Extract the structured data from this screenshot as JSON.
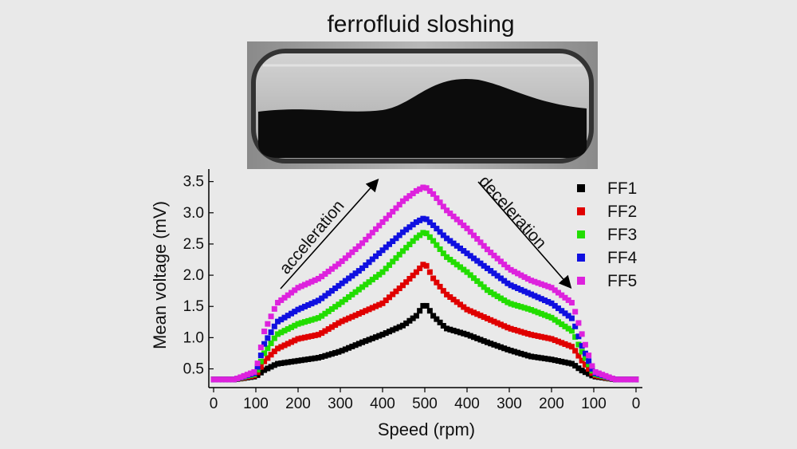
{
  "figure": {
    "photo_caption": "ferrofluid sloshing",
    "photo_subject": "cylindrical tube with ferrofluid"
  },
  "chart_data": {
    "type": "scatter",
    "title": "",
    "xlabel": "Speed (rpm)",
    "ylabel": "Mean voltage (mV)",
    "x_tick_labels": [
      "0",
      "100",
      "200",
      "300",
      "400",
      "500",
      "400",
      "300",
      "200",
      "100",
      "0"
    ],
    "y_tick_labels": [
      "0.5",
      "1.0",
      "1.5",
      "2.0",
      "2.5",
      "3.0",
      "3.5"
    ],
    "ylim": [
      0.2,
      3.7
    ],
    "x_axis_note": "speed ramps 0→500 rpm (acceleration) then 500→0 rpm (deceleration)",
    "annotations": [
      "acceleration",
      "deceleration"
    ],
    "legend_position": "top-right",
    "series": [
      {
        "name": "FF1",
        "color": "#000000",
        "x": [
          0,
          50,
          100,
          120,
          150,
          200,
          250,
          300,
          350,
          400,
          450,
          480,
          500,
          520,
          550,
          600,
          650,
          700,
          750,
          800,
          850,
          870,
          900,
          950,
          1000
        ],
        "values": [
          0.33,
          0.33,
          0.38,
          0.48,
          0.58,
          0.63,
          0.68,
          0.78,
          0.92,
          1.05,
          1.2,
          1.35,
          1.55,
          1.35,
          1.15,
          1.05,
          0.92,
          0.8,
          0.7,
          0.65,
          0.58,
          0.48,
          0.38,
          0.33,
          0.33
        ]
      },
      {
        "name": "FF2",
        "color": "#e00000",
        "x": [
          0,
          50,
          100,
          120,
          150,
          200,
          250,
          300,
          350,
          400,
          450,
          480,
          500,
          520,
          550,
          600,
          650,
          700,
          750,
          800,
          850,
          870,
          900,
          950,
          1000
        ],
        "values": [
          0.33,
          0.33,
          0.4,
          0.62,
          0.82,
          0.98,
          1.05,
          1.25,
          1.4,
          1.55,
          1.85,
          2.05,
          2.2,
          1.95,
          1.7,
          1.45,
          1.3,
          1.15,
          1.05,
          0.98,
          0.85,
          0.65,
          0.4,
          0.33,
          0.33
        ]
      },
      {
        "name": "FF3",
        "color": "#22dd00",
        "x": [
          0,
          50,
          100,
          120,
          150,
          200,
          250,
          300,
          350,
          400,
          450,
          480,
          500,
          520,
          550,
          600,
          650,
          700,
          750,
          800,
          850,
          870,
          900,
          950,
          1000
        ],
        "values": [
          0.33,
          0.33,
          0.42,
          0.75,
          1.05,
          1.22,
          1.32,
          1.55,
          1.8,
          2.05,
          2.4,
          2.6,
          2.7,
          2.55,
          2.3,
          2.05,
          1.75,
          1.55,
          1.45,
          1.32,
          1.1,
          0.8,
          0.42,
          0.33,
          0.33
        ]
      },
      {
        "name": "FF4",
        "color": "#1010e0",
        "x": [
          0,
          50,
          100,
          120,
          150,
          200,
          250,
          300,
          350,
          400,
          450,
          480,
          500,
          520,
          550,
          600,
          650,
          700,
          750,
          800,
          850,
          870,
          900,
          950,
          1000
        ],
        "values": [
          0.33,
          0.33,
          0.44,
          0.9,
          1.25,
          1.45,
          1.6,
          1.85,
          2.1,
          2.4,
          2.7,
          2.85,
          2.92,
          2.8,
          2.6,
          2.35,
          2.1,
          1.85,
          1.7,
          1.55,
          1.3,
          0.9,
          0.44,
          0.33,
          0.33
        ]
      },
      {
        "name": "FF5",
        "color": "#dd22dd",
        "x": [
          0,
          50,
          100,
          120,
          150,
          200,
          250,
          300,
          350,
          400,
          450,
          480,
          500,
          520,
          550,
          600,
          650,
          700,
          750,
          800,
          850,
          870,
          900,
          950,
          1000
        ],
        "values": [
          0.33,
          0.33,
          0.46,
          1.1,
          1.55,
          1.8,
          1.95,
          2.2,
          2.5,
          2.85,
          3.2,
          3.35,
          3.42,
          3.3,
          3.05,
          2.75,
          2.4,
          2.1,
          1.92,
          1.8,
          1.55,
          1.1,
          0.46,
          0.33,
          0.33
        ]
      }
    ]
  }
}
